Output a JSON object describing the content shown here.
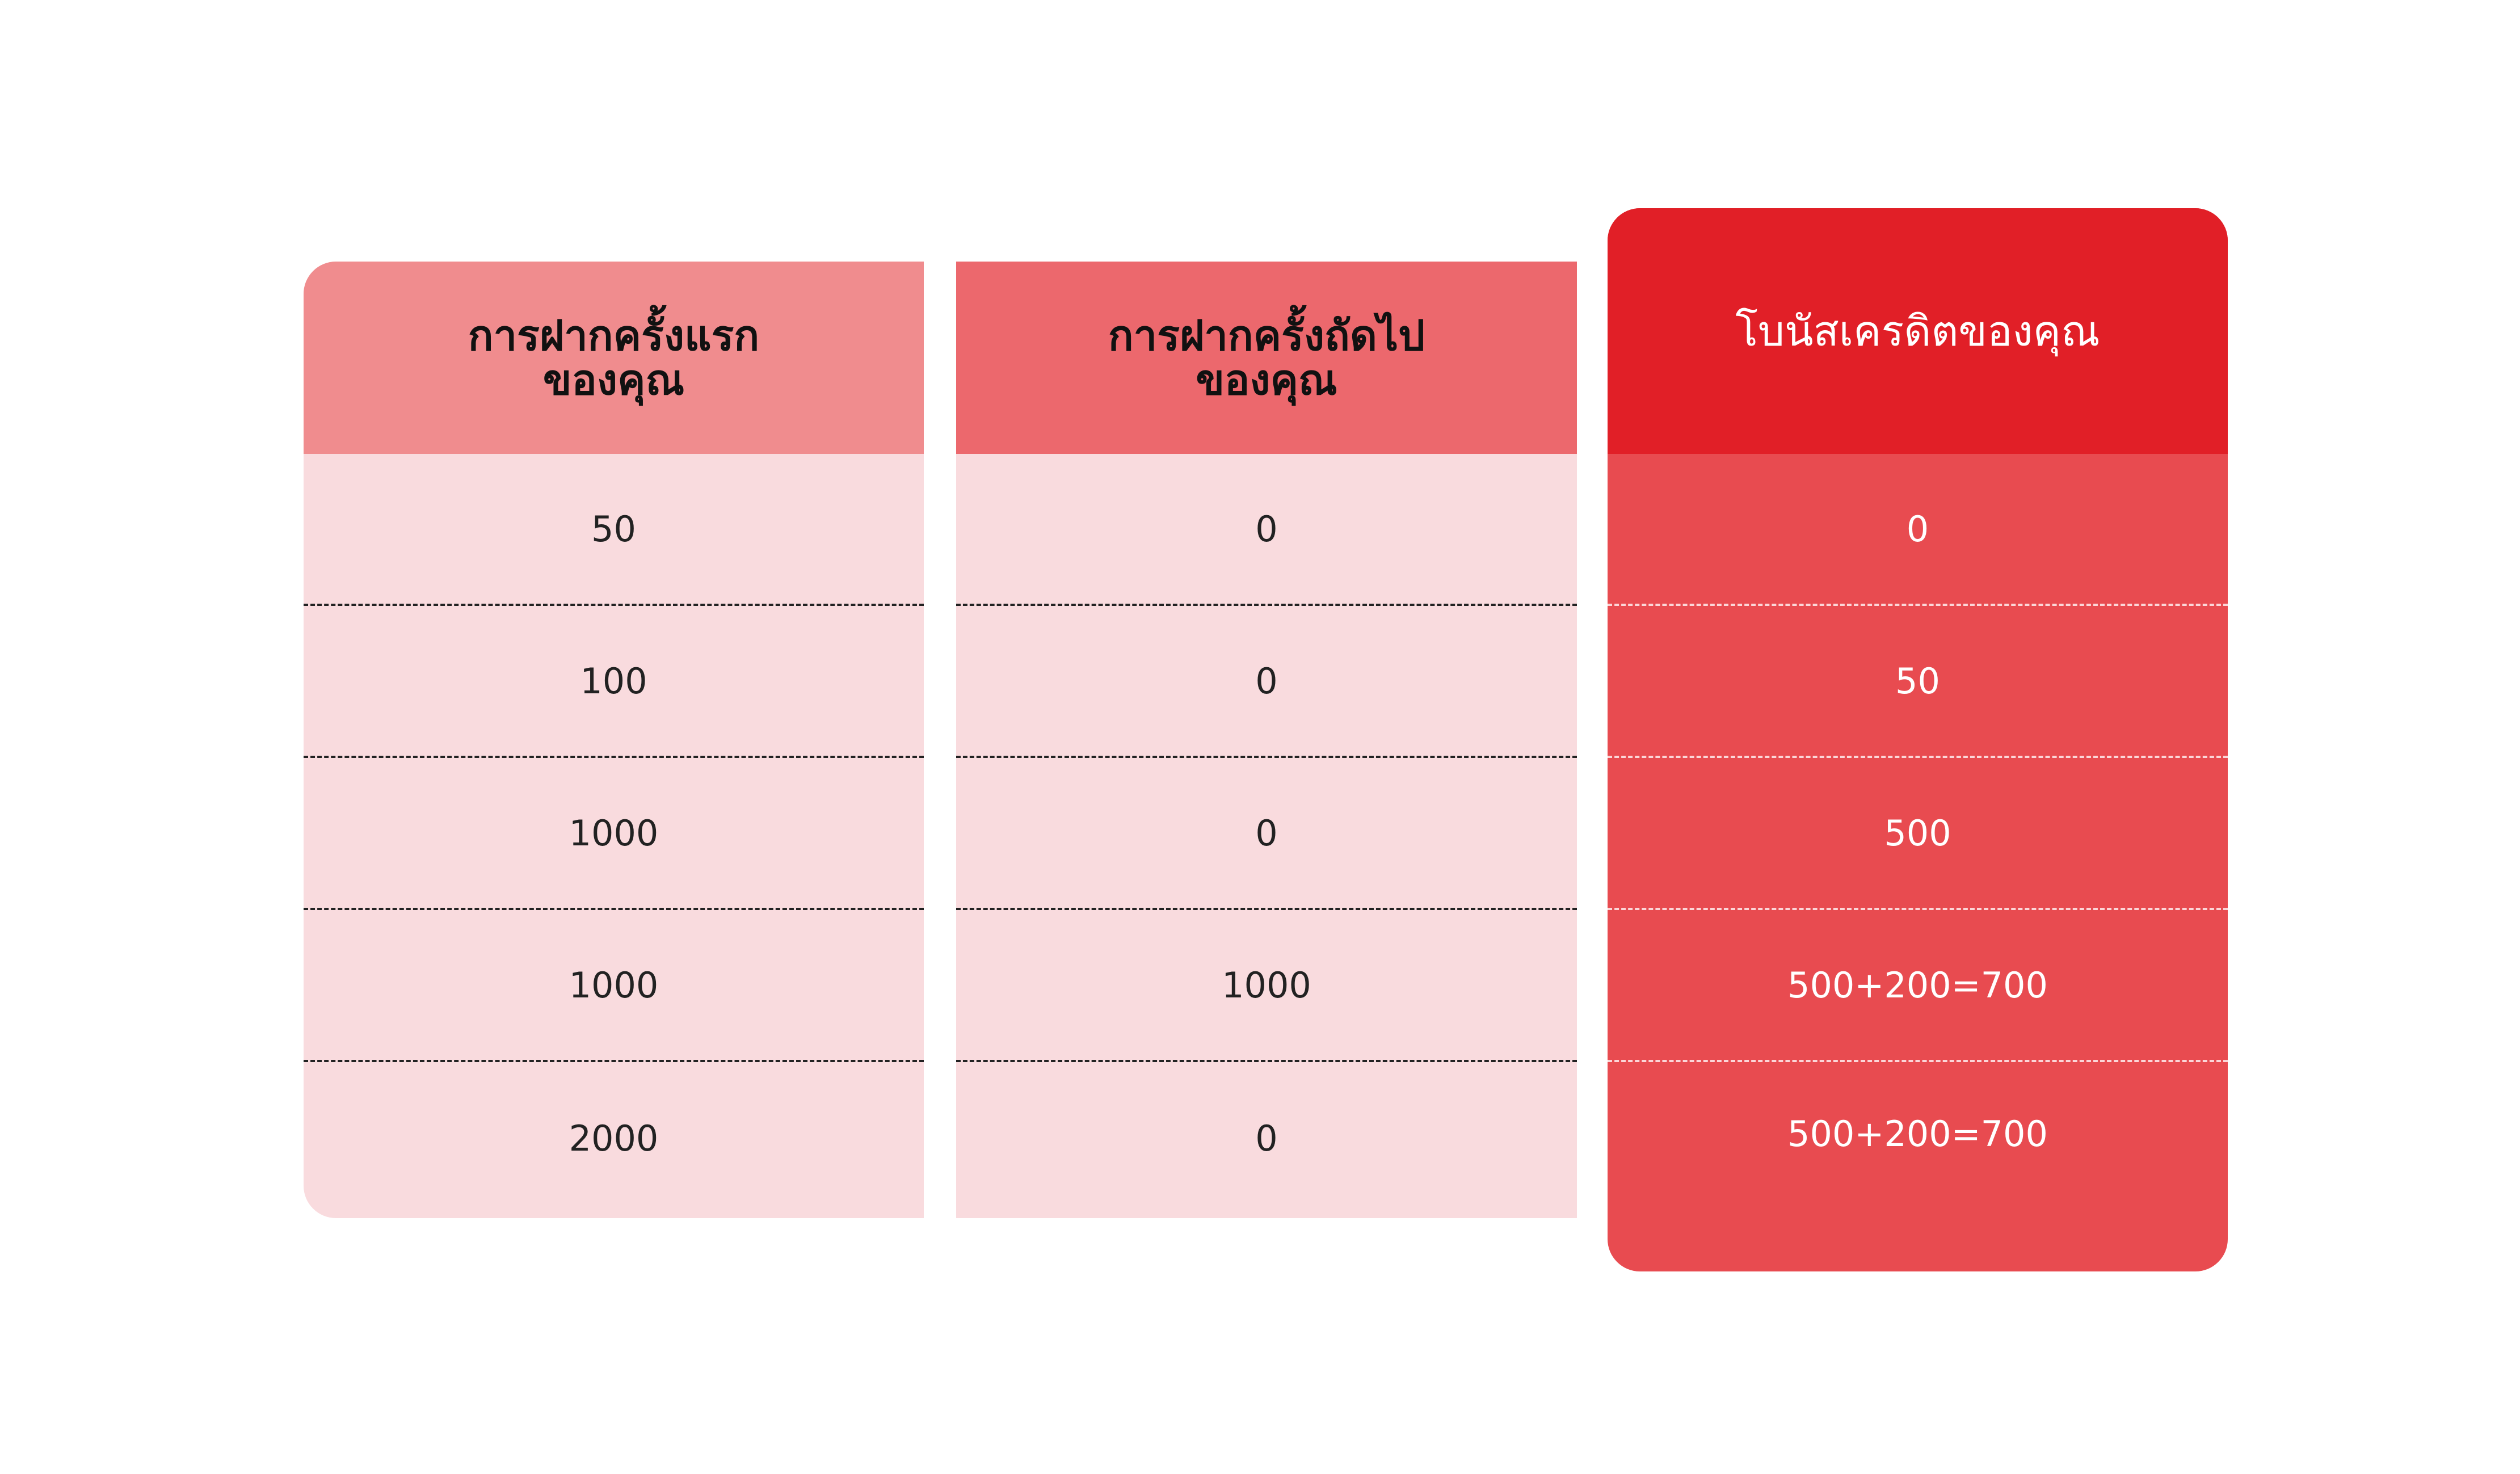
{
  "colors": {
    "header_1": "#F08C8E",
    "header_2": "#EC686D",
    "header_3": "#E11F27",
    "body_light": "#F9DBDE",
    "body_bonus": "#E84B50"
  },
  "columns": [
    {
      "header": "การฝากครั้งแรก\nของคุณ",
      "values": [
        "50",
        "100",
        "1000",
        "1000",
        "2000"
      ]
    },
    {
      "header": "การฝากครั้งถัดไป\nของคุณ",
      "values": [
        "0",
        "0",
        "0",
        "1000",
        "0"
      ]
    },
    {
      "header": "โบนัสเครดิตของคุณ",
      "values": [
        "0",
        "50",
        "500",
        "500+200=700",
        "500+200=700"
      ]
    }
  ]
}
